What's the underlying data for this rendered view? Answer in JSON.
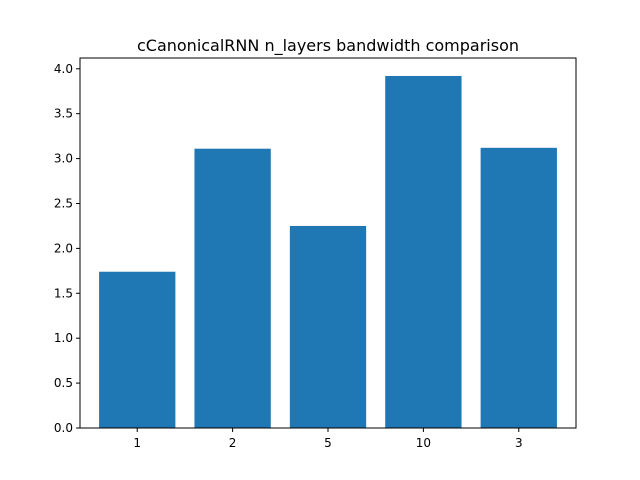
{
  "chart_data": {
    "type": "bar",
    "title": "cCanonicalRNN n_layers bandwidth comparison",
    "xlabel": "",
    "ylabel": "",
    "categories": [
      "1",
      "2",
      "5",
      "10",
      "3"
    ],
    "values": [
      1.74,
      3.11,
      2.25,
      3.92,
      3.12
    ],
    "ylim": [
      0,
      4.12
    ],
    "yticks": [
      "0.0",
      "0.5",
      "1.0",
      "1.5",
      "2.0",
      "2.5",
      "3.0",
      "3.5",
      "4.0"
    ],
    "bar_color": "#1f77b4",
    "grid": false,
    "legend": "none"
  }
}
